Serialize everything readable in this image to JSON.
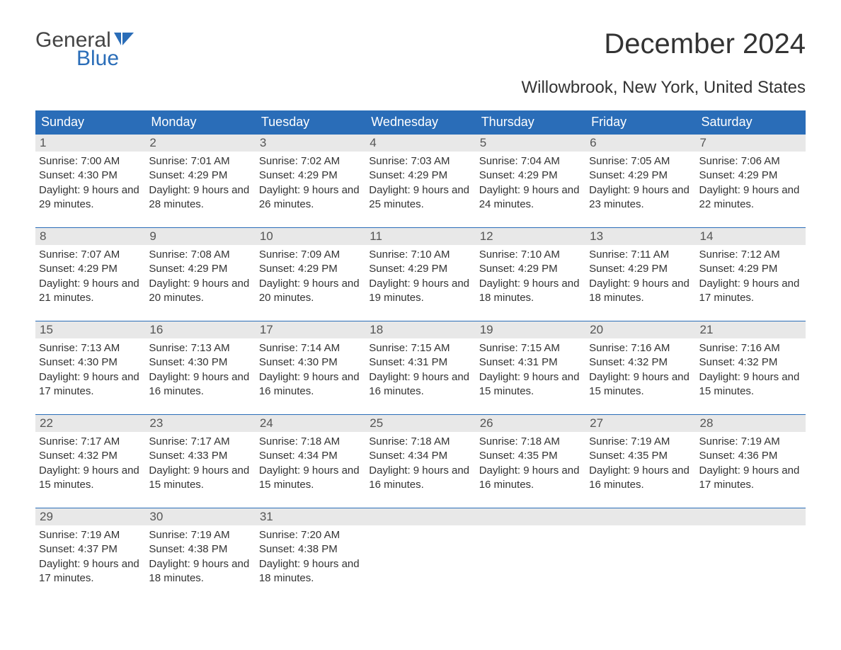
{
  "logo": {
    "line1": "General",
    "line2": "Blue"
  },
  "title": "December 2024",
  "subtitle": "Willowbrook, New York, United States",
  "colors": {
    "header_bg": "#2a6db8",
    "header_text": "#ffffff",
    "daynum_bg": "#e8e8e8",
    "daynum_border": "#2a6db8",
    "body_text": "#333333",
    "logo_gray": "#444444",
    "logo_blue": "#2a6db8",
    "background": "#ffffff"
  },
  "day_headers": [
    "Sunday",
    "Monday",
    "Tuesday",
    "Wednesday",
    "Thursday",
    "Friday",
    "Saturday"
  ],
  "weeks": [
    [
      {
        "n": "1",
        "sr": "7:00 AM",
        "ss": "4:30 PM",
        "dl": "9 hours and 29 minutes."
      },
      {
        "n": "2",
        "sr": "7:01 AM",
        "ss": "4:29 PM",
        "dl": "9 hours and 28 minutes."
      },
      {
        "n": "3",
        "sr": "7:02 AM",
        "ss": "4:29 PM",
        "dl": "9 hours and 26 minutes."
      },
      {
        "n": "4",
        "sr": "7:03 AM",
        "ss": "4:29 PM",
        "dl": "9 hours and 25 minutes."
      },
      {
        "n": "5",
        "sr": "7:04 AM",
        "ss": "4:29 PM",
        "dl": "9 hours and 24 minutes."
      },
      {
        "n": "6",
        "sr": "7:05 AM",
        "ss": "4:29 PM",
        "dl": "9 hours and 23 minutes."
      },
      {
        "n": "7",
        "sr": "7:06 AM",
        "ss": "4:29 PM",
        "dl": "9 hours and 22 minutes."
      }
    ],
    [
      {
        "n": "8",
        "sr": "7:07 AM",
        "ss": "4:29 PM",
        "dl": "9 hours and 21 minutes."
      },
      {
        "n": "9",
        "sr": "7:08 AM",
        "ss": "4:29 PM",
        "dl": "9 hours and 20 minutes."
      },
      {
        "n": "10",
        "sr": "7:09 AM",
        "ss": "4:29 PM",
        "dl": "9 hours and 20 minutes."
      },
      {
        "n": "11",
        "sr": "7:10 AM",
        "ss": "4:29 PM",
        "dl": "9 hours and 19 minutes."
      },
      {
        "n": "12",
        "sr": "7:10 AM",
        "ss": "4:29 PM",
        "dl": "9 hours and 18 minutes."
      },
      {
        "n": "13",
        "sr": "7:11 AM",
        "ss": "4:29 PM",
        "dl": "9 hours and 18 minutes."
      },
      {
        "n": "14",
        "sr": "7:12 AM",
        "ss": "4:29 PM",
        "dl": "9 hours and 17 minutes."
      }
    ],
    [
      {
        "n": "15",
        "sr": "7:13 AM",
        "ss": "4:30 PM",
        "dl": "9 hours and 17 minutes."
      },
      {
        "n": "16",
        "sr": "7:13 AM",
        "ss": "4:30 PM",
        "dl": "9 hours and 16 minutes."
      },
      {
        "n": "17",
        "sr": "7:14 AM",
        "ss": "4:30 PM",
        "dl": "9 hours and 16 minutes."
      },
      {
        "n": "18",
        "sr": "7:15 AM",
        "ss": "4:31 PM",
        "dl": "9 hours and 16 minutes."
      },
      {
        "n": "19",
        "sr": "7:15 AM",
        "ss": "4:31 PM",
        "dl": "9 hours and 15 minutes."
      },
      {
        "n": "20",
        "sr": "7:16 AM",
        "ss": "4:32 PM",
        "dl": "9 hours and 15 minutes."
      },
      {
        "n": "21",
        "sr": "7:16 AM",
        "ss": "4:32 PM",
        "dl": "9 hours and 15 minutes."
      }
    ],
    [
      {
        "n": "22",
        "sr": "7:17 AM",
        "ss": "4:32 PM",
        "dl": "9 hours and 15 minutes."
      },
      {
        "n": "23",
        "sr": "7:17 AM",
        "ss": "4:33 PM",
        "dl": "9 hours and 15 minutes."
      },
      {
        "n": "24",
        "sr": "7:18 AM",
        "ss": "4:34 PM",
        "dl": "9 hours and 15 minutes."
      },
      {
        "n": "25",
        "sr": "7:18 AM",
        "ss": "4:34 PM",
        "dl": "9 hours and 16 minutes."
      },
      {
        "n": "26",
        "sr": "7:18 AM",
        "ss": "4:35 PM",
        "dl": "9 hours and 16 minutes."
      },
      {
        "n": "27",
        "sr": "7:19 AM",
        "ss": "4:35 PM",
        "dl": "9 hours and 16 minutes."
      },
      {
        "n": "28",
        "sr": "7:19 AM",
        "ss": "4:36 PM",
        "dl": "9 hours and 17 minutes."
      }
    ],
    [
      {
        "n": "29",
        "sr": "7:19 AM",
        "ss": "4:37 PM",
        "dl": "9 hours and 17 minutes."
      },
      {
        "n": "30",
        "sr": "7:19 AM",
        "ss": "4:38 PM",
        "dl": "9 hours and 18 minutes."
      },
      {
        "n": "31",
        "sr": "7:20 AM",
        "ss": "4:38 PM",
        "dl": "9 hours and 18 minutes."
      },
      null,
      null,
      null,
      null
    ]
  ],
  "labels": {
    "sunrise": "Sunrise: ",
    "sunset": "Sunset: ",
    "daylight": "Daylight: "
  }
}
